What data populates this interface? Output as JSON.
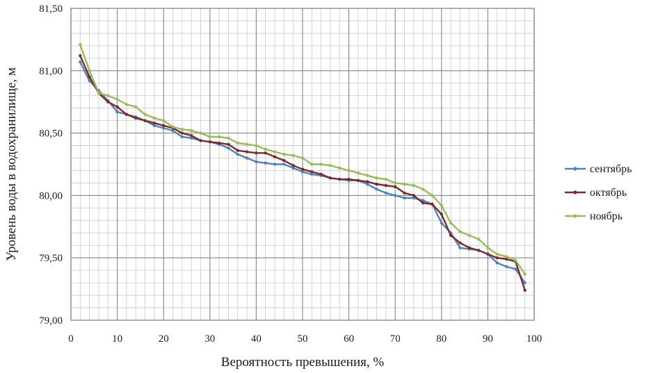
{
  "chart_data": {
    "type": "line",
    "xlabel": "Вероятность превышения, %",
    "ylabel": "Уровень воды в водохранилище, м",
    "xlim": [
      0,
      100
    ],
    "ylim": [
      79.0,
      81.5
    ],
    "x_ticks": [
      0,
      10,
      20,
      30,
      40,
      50,
      60,
      70,
      80,
      90,
      100
    ],
    "x_tick_labels": [
      "0",
      "10",
      "20",
      "30",
      "40",
      "50",
      "60",
      "70",
      "80",
      "90",
      "100"
    ],
    "y_ticks": [
      79.0,
      79.5,
      80.0,
      80.5,
      81.0,
      81.5
    ],
    "y_tick_labels": [
      "79,00",
      "79,50",
      "80,00",
      "80,50",
      "81,00",
      "81,50"
    ],
    "grid": true,
    "legend_position": "right",
    "series": [
      {
        "name": "сентябрь",
        "color": "#4f81bd",
        "x": [
          2,
          4,
          6,
          8,
          10,
          12,
          14,
          16,
          18,
          20,
          22,
          24,
          26,
          28,
          30,
          32,
          34,
          36,
          38,
          40,
          42,
          44,
          46,
          48,
          50,
          52,
          54,
          56,
          58,
          60,
          62,
          64,
          66,
          68,
          70,
          72,
          74,
          76,
          78,
          80,
          82,
          84,
          86,
          88,
          90,
          92,
          94,
          96,
          98
        ],
        "values": [
          81.07,
          80.92,
          80.84,
          80.76,
          80.67,
          80.65,
          80.63,
          80.6,
          80.56,
          80.54,
          80.52,
          80.47,
          80.46,
          80.44,
          80.43,
          80.41,
          80.38,
          80.33,
          80.3,
          80.27,
          80.26,
          80.25,
          80.25,
          80.22,
          80.19,
          80.17,
          80.16,
          80.14,
          80.13,
          80.12,
          80.12,
          80.09,
          80.05,
          80.02,
          80.0,
          79.98,
          79.98,
          79.96,
          79.93,
          79.78,
          79.7,
          79.58,
          79.57,
          79.56,
          79.53,
          79.46,
          79.43,
          79.41,
          79.3
        ]
      },
      {
        "name": "октябрь",
        "color": "#7f2828",
        "x": [
          2,
          4,
          6,
          8,
          10,
          12,
          14,
          16,
          18,
          20,
          22,
          24,
          26,
          28,
          30,
          32,
          34,
          36,
          38,
          40,
          42,
          44,
          46,
          48,
          50,
          52,
          54,
          56,
          58,
          60,
          62,
          64,
          66,
          68,
          70,
          72,
          74,
          76,
          78,
          80,
          82,
          84,
          86,
          88,
          90,
          92,
          94,
          96,
          98
        ],
        "values": [
          81.12,
          80.95,
          80.82,
          80.75,
          80.71,
          80.65,
          80.62,
          80.6,
          80.58,
          80.56,
          80.54,
          80.5,
          80.48,
          80.44,
          80.43,
          80.42,
          80.41,
          80.36,
          80.35,
          80.34,
          80.34,
          80.31,
          80.28,
          80.24,
          80.21,
          80.19,
          80.17,
          80.14,
          80.13,
          80.13,
          80.12,
          80.11,
          80.09,
          80.08,
          80.07,
          80.02,
          80.0,
          79.94,
          79.93,
          79.85,
          79.68,
          79.62,
          79.58,
          79.56,
          79.53,
          79.5,
          79.49,
          79.47,
          79.24
        ]
      },
      {
        "name": "ноябрь",
        "color": "#9bbb59",
        "x": [
          2,
          4,
          6,
          8,
          10,
          12,
          14,
          16,
          18,
          20,
          22,
          24,
          26,
          28,
          30,
          32,
          34,
          36,
          38,
          40,
          42,
          44,
          46,
          48,
          50,
          52,
          54,
          56,
          58,
          60,
          62,
          64,
          66,
          68,
          70,
          72,
          74,
          76,
          78,
          80,
          82,
          84,
          86,
          88,
          90,
          92,
          94,
          96,
          98
        ],
        "values": [
          81.21,
          81.0,
          80.82,
          80.8,
          80.77,
          80.73,
          80.71,
          80.65,
          80.62,
          80.6,
          80.55,
          80.53,
          80.52,
          80.5,
          80.47,
          80.47,
          80.46,
          80.42,
          80.41,
          80.4,
          80.37,
          80.35,
          80.33,
          80.32,
          80.3,
          80.25,
          80.25,
          80.24,
          80.22,
          80.2,
          80.18,
          80.16,
          80.14,
          80.13,
          80.1,
          80.09,
          80.08,
          80.05,
          80.0,
          79.92,
          79.78,
          79.71,
          79.68,
          79.65,
          79.58,
          79.53,
          79.51,
          79.48,
          79.37
        ]
      }
    ]
  }
}
